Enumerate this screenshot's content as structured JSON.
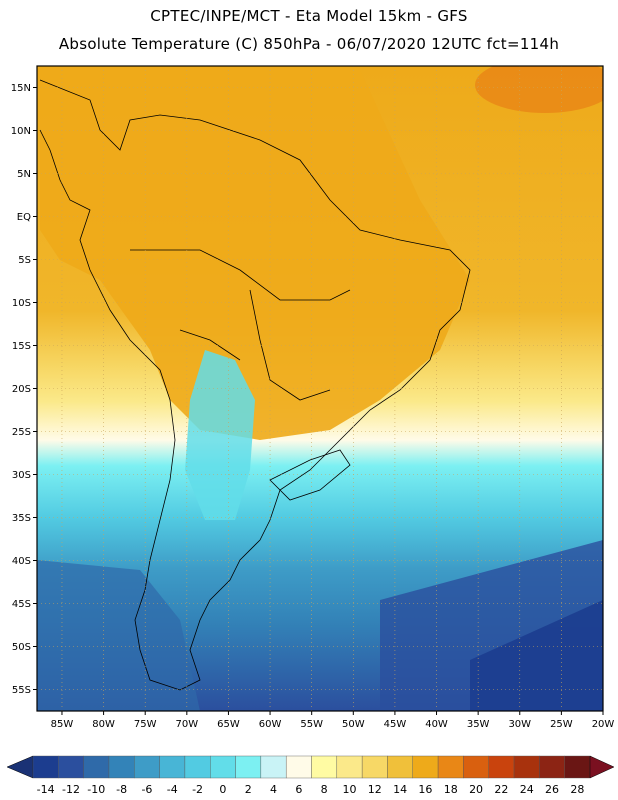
{
  "header": {
    "line1": "CPTEC/INPE/MCT -  Eta Model 15km - GFS",
    "line2": "Absolute Temperature (C) 850hPa - 06/07/2020 12UTC fct=114h"
  },
  "map": {
    "lat_labels": [
      "15N",
      "10N",
      "5N",
      "EQ",
      "5S",
      "10S",
      "15S",
      "20S",
      "25S",
      "30S",
      "35S",
      "40S",
      "45S",
      "50S",
      "55S"
    ],
    "lon_labels": [
      "85W",
      "80W",
      "75W",
      "70W",
      "65W",
      "60W",
      "55W",
      "50W",
      "45W",
      "40W",
      "35W",
      "30W",
      "25W",
      "20W"
    ],
    "lat_range": [
      15,
      -55
    ],
    "lon_range": [
      -85,
      -20
    ]
  },
  "colorbar": {
    "ticks": [
      "-14",
      "-12",
      "-10",
      "-8",
      "-6",
      "-4",
      "-2",
      "0",
      "2",
      "4",
      "6",
      "8",
      "10",
      "12",
      "14",
      "16",
      "18",
      "20",
      "22",
      "24",
      "26",
      "28"
    ],
    "colors": [
      "#1c3d8f",
      "#2b4f9e",
      "#2f6aa9",
      "#3383b8",
      "#3e9cc7",
      "#48b5d6",
      "#52cbe2",
      "#62dde9",
      "#7cf0f2",
      "#c9f3f6",
      "#fffbe8",
      "#fffba3",
      "#fbe98a",
      "#f7d866",
      "#f0c03a",
      "#eeaa1a",
      "#e98716",
      "#d9600f",
      "#c9430d",
      "#a8320d",
      "#8c2414",
      "#6a1614"
    ]
  }
}
